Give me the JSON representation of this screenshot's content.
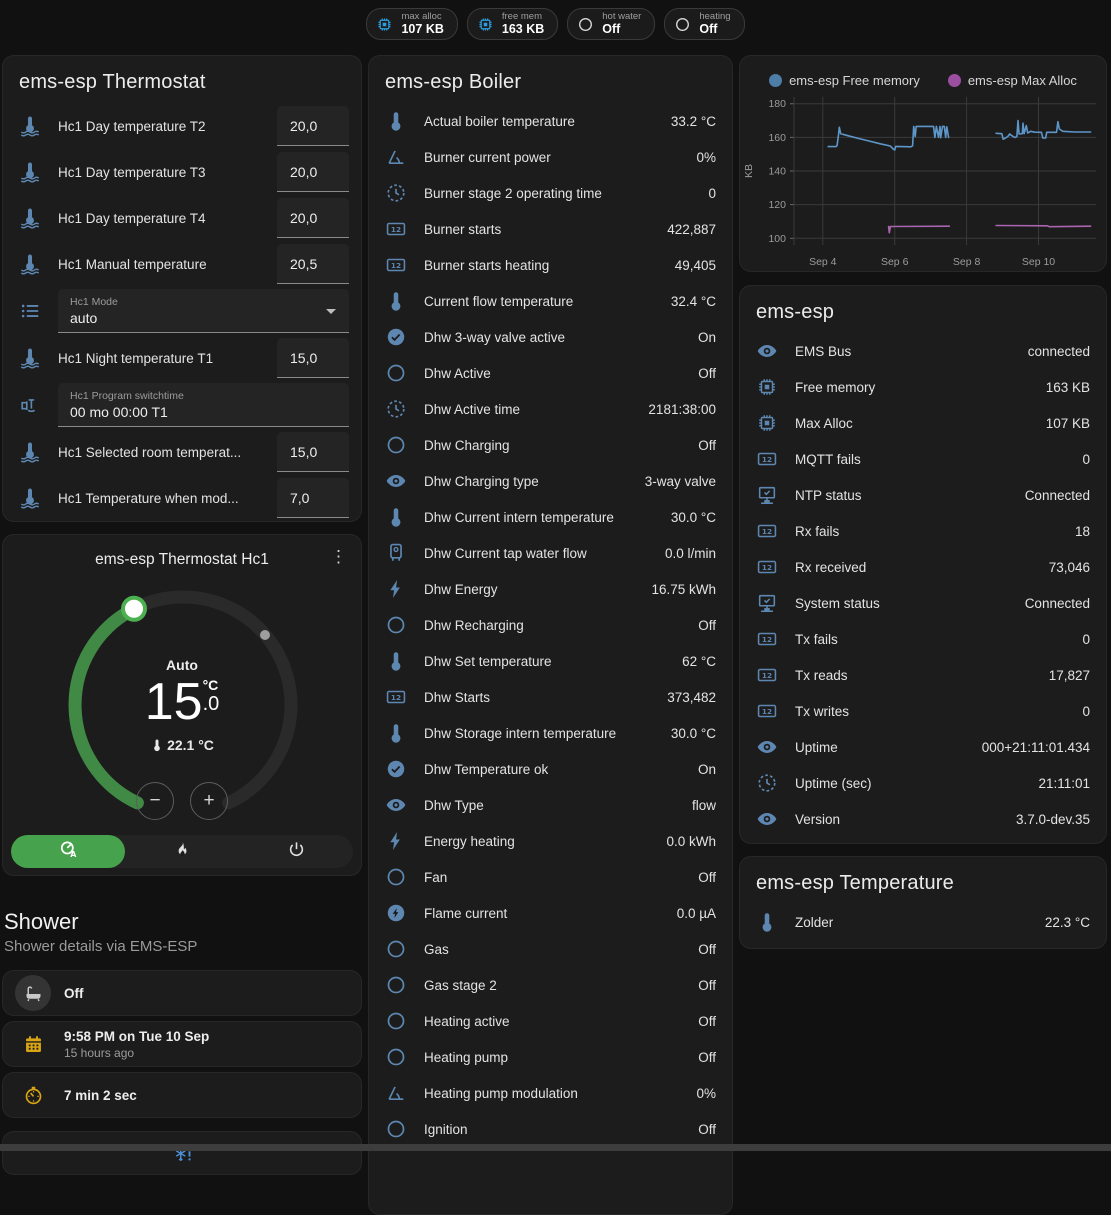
{
  "colors": {
    "icon_blue": "#5d87b0",
    "chip_blue": "#2d9fe0",
    "yellow": "#d9a514",
    "snow_blue": "#4a8fd4",
    "accent_green": "#46a24c",
    "arc_green": "#418a46",
    "handle_green": "#4caf50",
    "card_bg": "#1c1c1c"
  },
  "top_chips": [
    {
      "icon": "chip",
      "label": "max alloc",
      "value": "107 KB",
      "icon_color": "#2d9fe0"
    },
    {
      "icon": "chip",
      "label": "free mem",
      "value": "163 KB",
      "icon_color": "#2d9fe0"
    },
    {
      "icon": "circle-outline",
      "label": "hot water",
      "value": "Off",
      "icon_color": "#d8d8d8"
    },
    {
      "icon": "circle-outline",
      "label": "heating",
      "value": "Off",
      "icon_color": "#d8d8d8"
    }
  ],
  "thermostat_card": {
    "title": "ems-esp Thermostat",
    "rows": [
      {
        "type": "number",
        "icon": "thermometer-water",
        "label": "Hc1 Day temperature T2",
        "value": "20,0"
      },
      {
        "type": "number",
        "icon": "thermometer-water",
        "label": "Hc1 Day temperature T3",
        "value": "20,0"
      },
      {
        "type": "number",
        "icon": "thermometer-water",
        "label": "Hc1 Day temperature T4",
        "value": "20,0"
      },
      {
        "type": "number",
        "icon": "thermometer-water",
        "label": "Hc1 Manual temperature",
        "value": "20,5"
      },
      {
        "type": "select",
        "icon": "format-list",
        "label": "Hc1 Mode",
        "value": "auto"
      },
      {
        "type": "number",
        "icon": "thermometer-water",
        "label": "Hc1 Night temperature T1",
        "value": "15,0"
      },
      {
        "type": "text",
        "icon": "pipe-valve",
        "label": "Hc1 Program switchtime",
        "value": "00 mo 00:00 T1"
      },
      {
        "type": "number",
        "icon": "thermometer-water",
        "label": "Hc1 Selected room temperat...",
        "value": "15,0"
      },
      {
        "type": "number",
        "icon": "thermometer-water",
        "label": "Hc1 Temperature when mod...",
        "value": "7,0"
      }
    ]
  },
  "hc1_card": {
    "title": "ems-esp Thermostat Hc1",
    "mode": "Auto",
    "target_int": "15",
    "target_unit": "°C",
    "target_dec": ".0",
    "current": "22.1 °C",
    "decrease": "−",
    "increase": "+",
    "modes": [
      {
        "icon": "thermostat-auto",
        "name": "auto",
        "active": true
      },
      {
        "icon": "fire",
        "name": "heat",
        "active": false
      },
      {
        "icon": "power",
        "name": "off",
        "active": false
      }
    ]
  },
  "shower": {
    "title": "Shower",
    "subtitle": "Shower details via EMS-ESP",
    "items": [
      {
        "icon": "bathtub",
        "style": "gray",
        "primary": "Off",
        "secondary": ""
      },
      {
        "icon": "calendar",
        "style": "yellow",
        "primary": "9:58 PM on Tue 10 Sep",
        "secondary": "15 hours ago"
      },
      {
        "icon": "timer",
        "style": "yellow",
        "primary": "7 min 2 sec",
        "secondary": ""
      },
      {
        "icon": "snowflake-alert",
        "style": "blue",
        "primary": "",
        "secondary": ""
      }
    ]
  },
  "boiler_card": {
    "title": "ems-esp Boiler",
    "rows": [
      {
        "icon": "thermometer",
        "label": "Actual boiler temperature",
        "value": "33.2 °C"
      },
      {
        "icon": "angle",
        "label": "Burner current power",
        "value": "0%"
      },
      {
        "icon": "progress-clock",
        "label": "Burner stage 2 operating time",
        "value": "0"
      },
      {
        "icon": "counter",
        "label": "Burner starts",
        "value": "422,887"
      },
      {
        "icon": "counter",
        "label": "Burner starts heating",
        "value": "49,405"
      },
      {
        "icon": "thermometer",
        "label": "Current flow temperature",
        "value": "32.4 °C"
      },
      {
        "icon": "check-circle",
        "label": "Dhw 3-way valve active",
        "value": "On"
      },
      {
        "icon": "circle-outline",
        "label": "Dhw Active",
        "value": "Off"
      },
      {
        "icon": "progress-clock",
        "label": "Dhw Active time",
        "value": "2181:38:00"
      },
      {
        "icon": "circle-outline",
        "label": "Dhw Charging",
        "value": "Off"
      },
      {
        "icon": "eye",
        "label": "Dhw Charging type",
        "value": "3-way valve"
      },
      {
        "icon": "thermometer",
        "label": "Dhw Current intern temperature",
        "value": "30.0 °C"
      },
      {
        "icon": "water-boiler",
        "label": "Dhw Current tap water flow",
        "value": "0.0 l/min"
      },
      {
        "icon": "flash",
        "label": "Dhw Energy",
        "value": "16.75 kWh"
      },
      {
        "icon": "circle-outline",
        "label": "Dhw Recharging",
        "value": "Off"
      },
      {
        "icon": "thermometer",
        "label": "Dhw Set temperature",
        "value": "62 °C"
      },
      {
        "icon": "counter",
        "label": "Dhw Starts",
        "value": "373,482"
      },
      {
        "icon": "thermometer",
        "label": "Dhw Storage intern temperature",
        "value": "30.0 °C"
      },
      {
        "icon": "check-circle",
        "label": "Dhw Temperature ok",
        "value": "On"
      },
      {
        "icon": "eye",
        "label": "Dhw Type",
        "value": "flow"
      },
      {
        "icon": "flash",
        "label": "Energy heating",
        "value": "0.0 kWh"
      },
      {
        "icon": "circle-outline",
        "label": "Fan",
        "value": "Off"
      },
      {
        "icon": "flash-circle",
        "label": "Flame current",
        "value": "0.0 µA"
      },
      {
        "icon": "circle-outline",
        "label": "Gas",
        "value": "Off"
      },
      {
        "icon": "circle-outline",
        "label": "Gas stage 2",
        "value": "Off"
      },
      {
        "icon": "circle-outline",
        "label": "Heating active",
        "value": "Off"
      },
      {
        "icon": "circle-outline",
        "label": "Heating pump",
        "value": "Off"
      },
      {
        "icon": "angle",
        "label": "Heating pump modulation",
        "value": "0%"
      },
      {
        "icon": "circle-outline",
        "label": "Ignition",
        "value": "Off"
      }
    ]
  },
  "chart_card": {
    "chart_data": {
      "type": "line",
      "ylabel": "KB",
      "grid": true,
      "legend_position": "top",
      "xlim": [
        3.2,
        11.6
      ],
      "ylim": [
        96,
        184
      ],
      "y_ticks": [
        100,
        120,
        140,
        160,
        180
      ],
      "x_ticks": [
        {
          "day": 4,
          "label": "Sep 4"
        },
        {
          "day": 6,
          "label": "Sep 6"
        },
        {
          "day": 8,
          "label": "Sep 8"
        },
        {
          "day": 10,
          "label": "Sep 10"
        }
      ],
      "series": [
        {
          "name": "ems-esp Free memory",
          "color": "#5d97c9",
          "dot_color": "#4e7da8",
          "segments": [
            [
              [
                4.15,
                154.5
              ],
              [
                4.37,
                154.5
              ],
              [
                4.4,
                155.2
              ],
              [
                4.44,
                162
              ],
              [
                4.46,
                166
              ],
              [
                4.5,
                162.2
              ],
              [
                4.7,
                161
              ],
              [
                5.0,
                159.3
              ],
              [
                5.3,
                157.8
              ],
              [
                5.6,
                156.2
              ],
              [
                5.8,
                155.2
              ],
              [
                5.88,
                154.8
              ],
              [
                5.95,
                153.2
              ],
              [
                6.0,
                152.5
              ],
              [
                6.03,
                154.6
              ],
              [
                6.45,
                154.4
              ],
              [
                6.5,
                155
              ],
              [
                6.53,
                166.5
              ],
              [
                6.57,
                160.5
              ],
              [
                6.6,
                166.5
              ],
              [
                7.08,
                166.5
              ],
              [
                7.12,
                160
              ],
              [
                7.16,
                166.5
              ],
              [
                7.22,
                160
              ],
              [
                7.26,
                166.5
              ],
              [
                7.28,
                159.8
              ],
              [
                7.33,
                166.5
              ],
              [
                7.38,
                166.5
              ],
              [
                7.42,
                160
              ],
              [
                7.45,
                166.3
              ],
              [
                7.5,
                159.9
              ]
            ],
            [
              [
                8.82,
                162.4
              ],
              [
                8.98,
                162.2
              ],
              [
                9.02,
                158.9
              ],
              [
                9.08,
                159.6
              ],
              [
                9.15,
                160.6
              ],
              [
                9.2,
                162
              ],
              [
                9.3,
                160.4
              ],
              [
                9.35,
                159.9
              ],
              [
                9.4,
                160.6
              ],
              [
                9.43,
                170
              ],
              [
                9.46,
                162
              ],
              [
                9.55,
                162.2
              ],
              [
                9.57,
                168.4
              ],
              [
                9.6,
                162.2
              ],
              [
                9.66,
                167
              ],
              [
                9.7,
                162.6
              ],
              [
                9.78,
                163.6
              ],
              [
                9.9,
                163.1
              ],
              [
                10.08,
                163
              ],
              [
                10.12,
                159.6
              ],
              [
                10.2,
                159.6
              ],
              [
                10.23,
                163
              ],
              [
                10.5,
                163
              ],
              [
                10.54,
                169.3
              ],
              [
                10.58,
                165
              ],
              [
                10.68,
                163.6
              ],
              [
                11.0,
                163.2
              ],
              [
                11.45,
                163.2
              ]
            ]
          ]
        },
        {
          "name": "ems-esp Max Alloc",
          "color": "#a965af",
          "dot_color": "#9c4fa0",
          "segments": [
            [
              [
                5.83,
                107
              ],
              [
                5.85,
                103.3
              ],
              [
                5.88,
                107
              ],
              [
                7.52,
                107.2
              ]
            ],
            [
              [
                8.82,
                107.6
              ],
              [
                10.25,
                107.4
              ],
              [
                10.3,
                106.9
              ],
              [
                11.45,
                107.2
              ]
            ]
          ]
        }
      ]
    }
  },
  "emsesp_card": {
    "title": "ems-esp",
    "rows": [
      {
        "icon": "eye",
        "label": "EMS Bus",
        "value": "connected"
      },
      {
        "icon": "chip",
        "label": "Free memory",
        "value": "163 KB"
      },
      {
        "icon": "chip",
        "label": "Max Alloc",
        "value": "107 KB"
      },
      {
        "icon": "counter",
        "label": "MQTT fails",
        "value": "0"
      },
      {
        "icon": "network",
        "label": "NTP status",
        "value": "Connected"
      },
      {
        "icon": "counter",
        "label": "Rx fails",
        "value": "18"
      },
      {
        "icon": "counter",
        "label": "Rx received",
        "value": "73,046"
      },
      {
        "icon": "network",
        "label": "System status",
        "value": "Connected"
      },
      {
        "icon": "counter",
        "label": "Tx fails",
        "value": "0"
      },
      {
        "icon": "counter",
        "label": "Tx reads",
        "value": "17,827"
      },
      {
        "icon": "counter",
        "label": "Tx writes",
        "value": "0"
      },
      {
        "icon": "eye",
        "label": "Uptime",
        "value": "000+21:11:01.434"
      },
      {
        "icon": "progress-clock",
        "label": "Uptime (sec)",
        "value": "21:11:01"
      },
      {
        "icon": "eye",
        "label": "Version",
        "value": "3.7.0-dev.35"
      }
    ]
  },
  "temperature_card": {
    "title": "ems-esp Temperature",
    "rows": [
      {
        "icon": "thermometer",
        "label": "Zolder",
        "value": "22.3 °C"
      }
    ]
  }
}
